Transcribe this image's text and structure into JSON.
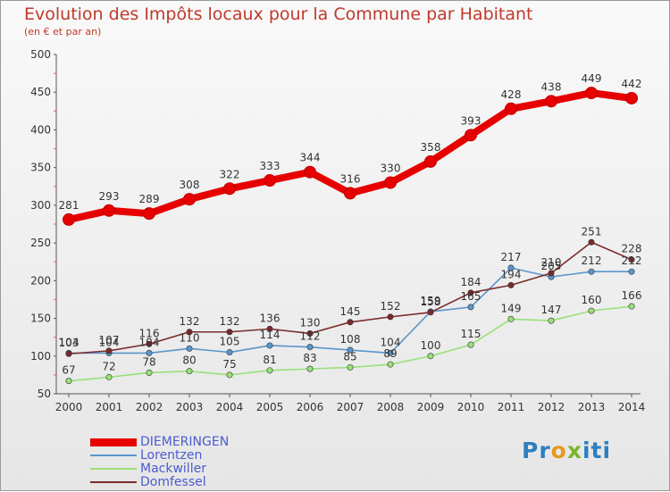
{
  "chart_data": {
    "type": "line",
    "title": "Evolution des Impôts locaux pour la Commune par Habitant",
    "subtitle": "(en € et par an)",
    "categories": [
      "2000",
      "2001",
      "2002",
      "2003",
      "2004",
      "2005",
      "2006",
      "2007",
      "2008",
      "2009",
      "2010",
      "2011",
      "2012",
      "2013",
      "2014"
    ],
    "yticks": [
      "50",
      "100",
      "150",
      "200",
      "250",
      "300",
      "350",
      "400",
      "450",
      "500"
    ],
    "ylim": [
      50,
      500
    ],
    "grid": false,
    "legend_position": "bottom-left",
    "series": [
      {
        "name": "DIEMERINGEN",
        "color": "#e60000",
        "values": [
          281,
          293,
          289,
          308,
          322,
          333,
          344,
          316,
          330,
          358,
          393,
          428,
          438,
          449,
          442
        ]
      },
      {
        "name": "Lorentzen",
        "color": "#5a96cc",
        "values": [
          104,
          104,
          104,
          110,
          105,
          114,
          112,
          108,
          104,
          159,
          165,
          217,
          205,
          212,
          212
        ]
      },
      {
        "name": "Mackwiller",
        "color": "#99e07a",
        "values": [
          67,
          72,
          78,
          80,
          75,
          81,
          83,
          85,
          89,
          100,
          115,
          149,
          147,
          160,
          166
        ]
      },
      {
        "name": "Domfessel",
        "color": "#7a2a2a",
        "values": [
          103,
          107,
          116,
          132,
          132,
          136,
          130,
          145,
          152,
          158,
          184,
          194,
          210,
          251,
          228
        ]
      }
    ],
    "data_labels": {
      "DIEMERINGEN": [
        "281",
        "293",
        "289",
        "308",
        "322",
        "333",
        "344",
        "316",
        "330",
        "358",
        "393",
        "428",
        "438",
        "449",
        "442"
      ],
      "Lorentzen": [
        "104",
        "104",
        "104",
        "110",
        "105",
        "114",
        "112",
        "108",
        "104",
        "159",
        "165",
        "217",
        "205",
        "212",
        "212"
      ],
      "Mackwiller": [
        "67",
        "72",
        "78",
        "80",
        "75",
        "81",
        "83",
        "85",
        "89",
        "100",
        "115",
        "149",
        "147",
        "160",
        "166"
      ],
      "Domfessel": [
        "103",
        "107",
        "116",
        "132",
        "132",
        "136",
        "130",
        "145",
        "152",
        "158",
        "184",
        "194",
        "210",
        "251",
        "228"
      ]
    }
  },
  "logo": {
    "p1": "Pr",
    "o": "o",
    "x": "x",
    "p2": "iti"
  }
}
